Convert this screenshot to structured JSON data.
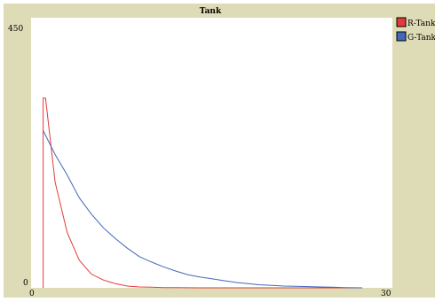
{
  "chart_data": {
    "type": "line",
    "title": "Tank",
    "xlabel": "",
    "ylabel": "",
    "xlim": [
      0,
      30
    ],
    "ylim": [
      0,
      450
    ],
    "x_ticks": [
      "0",
      "30"
    ],
    "y_ticks": [
      "0",
      "450"
    ],
    "grid": false,
    "legend": "right",
    "series": [
      {
        "name": "R-Tank",
        "color": "#e23b3b",
        "x": [
          1,
          1,
          1.2,
          2,
          3,
          4,
          5,
          6,
          7,
          8,
          9,
          10,
          11,
          12,
          14,
          16,
          18,
          20,
          22,
          24,
          26,
          27.5
        ],
        "values": [
          0,
          316,
          316,
          176,
          92,
          46,
          23,
          13,
          7,
          3,
          1.5,
          1,
          0.5,
          0.3,
          0,
          0,
          0,
          0,
          0,
          0,
          0,
          0
        ]
      },
      {
        "name": "G-Tank",
        "color": "#4466bb",
        "x": [
          1,
          2,
          3,
          4,
          5,
          6,
          7,
          8,
          9,
          10,
          11,
          12,
          13,
          14,
          15,
          16,
          17,
          18,
          19,
          20,
          21,
          22,
          23,
          24,
          25,
          26,
          27.5
        ],
        "values": [
          262,
          222,
          188,
          150,
          123,
          100,
          82,
          66,
          52,
          43,
          35,
          28,
          22,
          18,
          15,
          12,
          9,
          7,
          5,
          4,
          3,
          2.5,
          2,
          1.5,
          1,
          0.5,
          0
        ]
      }
    ]
  }
}
